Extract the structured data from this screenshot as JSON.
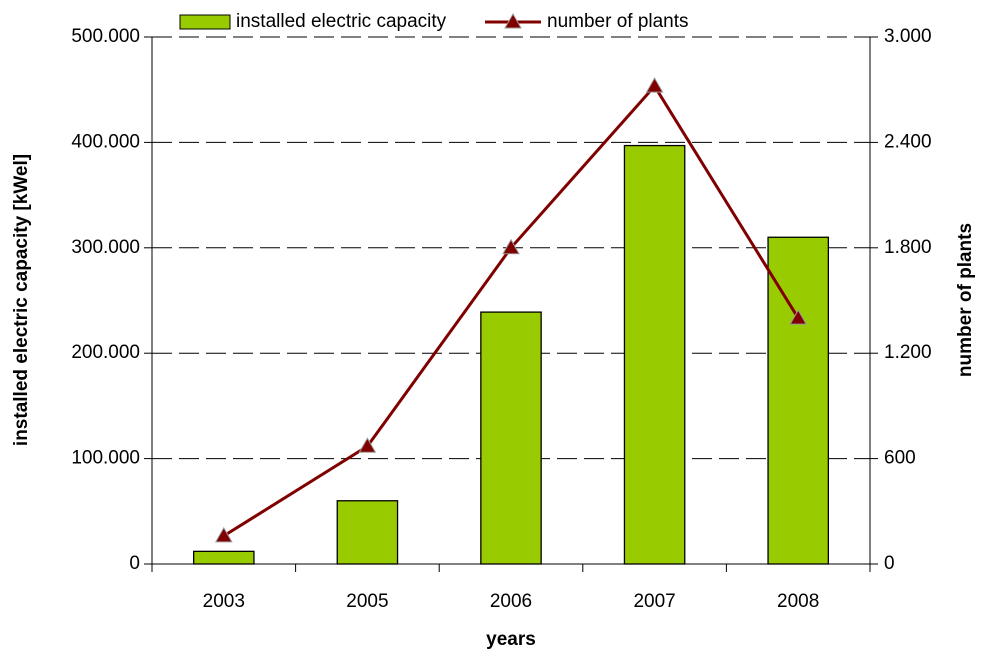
{
  "chart_data": {
    "type": "combo",
    "x_label": "years",
    "y_label": "installed electric capacity [kWel]",
    "y2_label": "number of plants",
    "categories": [
      "2003",
      "2005",
      "2006",
      "2007",
      "2008"
    ],
    "series": [
      {
        "name": "installed electric capacity",
        "type": "bar",
        "color": "#99cc00",
        "values": [
          12000,
          60000,
          239000,
          397000,
          310000
        ]
      },
      {
        "name": "number of plants",
        "type": "line",
        "axis": "y2",
        "color": "#800000",
        "values": [
          160,
          670,
          1800,
          2720,
          1400
        ]
      }
    ],
    "ylim": [
      0,
      500000
    ],
    "yticks": [
      0,
      {
        "value": 100000,
        "label": "100.000"
      },
      {
        "value": 200000,
        "label": "200.000"
      },
      {
        "value": 300000,
        "label": "300.000"
      },
      {
        "value": 400000,
        "label": "400.000"
      },
      {
        "value": 500000,
        "label": "500.000"
      }
    ],
    "y2lim": [
      0,
      3000
    ],
    "y2ticks": [
      0,
      600,
      {
        "value": 1200,
        "label": "1.200"
      },
      {
        "value": 1800,
        "label": "1.800"
      },
      {
        "value": 2400,
        "label": "2.400"
      },
      {
        "value": 3000,
        "label": "3.000"
      }
    ],
    "grid": true
  }
}
